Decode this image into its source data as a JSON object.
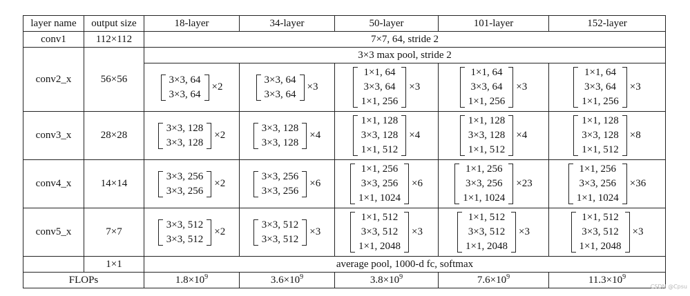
{
  "headers": [
    "layer name",
    "output size",
    "18-layer",
    "34-layer",
    "50-layer",
    "101-layer",
    "152-layer"
  ],
  "conv1": {
    "name": "conv1",
    "output": "112×112",
    "desc": "7×7, 64, stride 2"
  },
  "conv2": {
    "name": "conv2_x",
    "output": "56×56",
    "pool": "3×3 max pool, stride 2",
    "cells": [
      {
        "lines": [
          "3×3, 64",
          "3×3, 64"
        ],
        "mult": "×2"
      },
      {
        "lines": [
          "3×3, 64",
          "3×3, 64"
        ],
        "mult": "×3"
      },
      {
        "lines": [
          "1×1, 64",
          "3×3, 64",
          "1×1, 256"
        ],
        "mult": "×3"
      },
      {
        "lines": [
          "1×1, 64",
          "3×3, 64",
          "1×1, 256"
        ],
        "mult": "×3"
      },
      {
        "lines": [
          "1×1, 64",
          "3×3, 64",
          "1×1, 256"
        ],
        "mult": "×3"
      }
    ]
  },
  "conv3": {
    "name": "conv3_x",
    "output": "28×28",
    "cells": [
      {
        "lines": [
          "3×3, 128",
          "3×3, 128"
        ],
        "mult": "×2"
      },
      {
        "lines": [
          "3×3, 128",
          "3×3, 128"
        ],
        "mult": "×4"
      },
      {
        "lines": [
          "1×1, 128",
          "3×3, 128",
          "1×1, 512"
        ],
        "mult": "×4"
      },
      {
        "lines": [
          "1×1, 128",
          "3×3, 128",
          "1×1, 512"
        ],
        "mult": "×4"
      },
      {
        "lines": [
          "1×1, 128",
          "3×3, 128",
          "1×1, 512"
        ],
        "mult": "×8"
      }
    ]
  },
  "conv4": {
    "name": "conv4_x",
    "output": "14×14",
    "cells": [
      {
        "lines": [
          "3×3, 256",
          "3×3, 256"
        ],
        "mult": "×2"
      },
      {
        "lines": [
          "3×3, 256",
          "3×3, 256"
        ],
        "mult": "×6"
      },
      {
        "lines": [
          "1×1, 256",
          "3×3, 256",
          "1×1, 1024"
        ],
        "mult": "×6"
      },
      {
        "lines": [
          "1×1, 256",
          "3×3, 256",
          "1×1, 1024"
        ],
        "mult": "×23"
      },
      {
        "lines": [
          "1×1, 256",
          "3×3, 256",
          "1×1, 1024"
        ],
        "mult": "×36"
      }
    ]
  },
  "conv5": {
    "name": "conv5_x",
    "output": "7×7",
    "cells": [
      {
        "lines": [
          "3×3, 512",
          "3×3, 512"
        ],
        "mult": "×2"
      },
      {
        "lines": [
          "3×3, 512",
          "3×3, 512"
        ],
        "mult": "×3"
      },
      {
        "lines": [
          "1×1, 512",
          "3×3, 512",
          "1×1, 2048"
        ],
        "mult": "×3"
      },
      {
        "lines": [
          "1×1, 512",
          "3×3, 512",
          "1×1, 2048"
        ],
        "mult": "×3"
      },
      {
        "lines": [
          "1×1, 512",
          "3×3, 512",
          "1×1, 2048"
        ],
        "mult": "×3"
      }
    ]
  },
  "pool": {
    "output": "1×1",
    "desc": "average pool, 1000-d fc, softmax"
  },
  "flops": {
    "label": "FLOPs",
    "values": [
      {
        "base": "1.8×10",
        "exp": "9"
      },
      {
        "base": "3.6×10",
        "exp": "9"
      },
      {
        "base": "3.8×10",
        "exp": "9"
      },
      {
        "base": "7.6×10",
        "exp": "9"
      },
      {
        "base": "11.3×10",
        "exp": "9"
      }
    ]
  },
  "watermark": "CSDN @Cpsu"
}
